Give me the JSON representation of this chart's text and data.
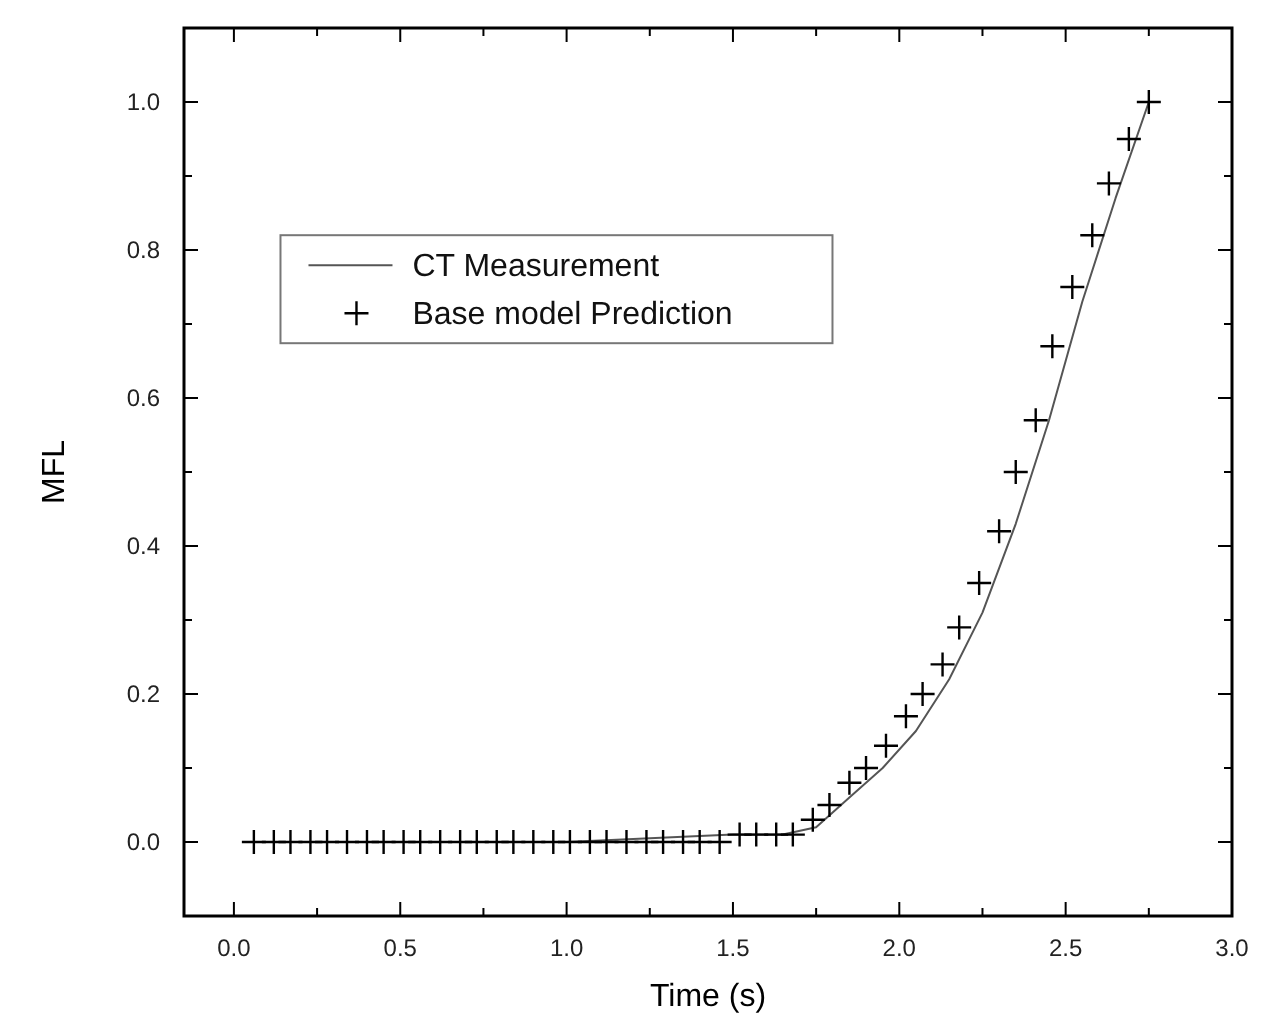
{
  "chart_data": {
    "type": "line",
    "xlabel": "Time (s)",
    "ylabel": "MFL",
    "xlim": [
      -0.15,
      3.0
    ],
    "ylim": [
      -0.1,
      1.1
    ],
    "xticks": [
      {
        "value": 0,
        "label": "0.0"
      },
      0.5,
      {
        "value": 1,
        "label": "1.0"
      },
      1.5,
      {
        "value": 2,
        "label": "2.0"
      },
      2.5,
      {
        "value": 3,
        "label": "3.0"
      }
    ],
    "yticks": [
      {
        "value": 0,
        "label": "0.0"
      },
      0.2,
      0.4,
      0.6,
      0.8,
      {
        "value": 1,
        "label": "1.0"
      }
    ],
    "legend": "top left",
    "grid": false,
    "series": [
      {
        "name": "CT Measurement",
        "color": "#555555",
        "marker": "none",
        "line_style": "solid",
        "x": [
          0.05,
          0.5,
          1.0,
          1.5,
          1.65,
          1.75,
          1.85,
          1.95,
          2.05,
          2.15,
          2.25,
          2.35,
          2.45,
          2.55,
          2.65,
          2.75
        ],
        "values": [
          0,
          0,
          0,
          0.01,
          0.01,
          0.02,
          0.06,
          0.1,
          0.15,
          0.22,
          0.31,
          0.43,
          0.57,
          0.73,
          0.87,
          1.0
        ]
      },
      {
        "name": "Base model Prediction",
        "type": "scatter",
        "color": "#000000",
        "marker": "cross",
        "x": [
          0.06,
          0.12,
          0.17,
          0.23,
          0.28,
          0.34,
          0.4,
          0.45,
          0.51,
          0.56,
          0.62,
          0.68,
          0.73,
          0.79,
          0.84,
          0.9,
          0.96,
          1.01,
          1.07,
          1.12,
          1.18,
          1.24,
          1.29,
          1.35,
          1.4,
          1.46,
          1.52,
          1.57,
          1.63,
          1.68,
          1.74,
          1.79,
          1.85,
          1.9,
          1.96,
          2.02,
          2.07,
          2.13,
          2.18,
          2.24,
          2.3,
          2.35,
          2.41,
          2.46,
          2.52,
          2.58,
          2.63,
          2.69,
          2.75
        ],
        "values": [
          0,
          0,
          0,
          0,
          0,
          0,
          0,
          0,
          0,
          0,
          0,
          0,
          0,
          0,
          0,
          0,
          0,
          0,
          0,
          0,
          0,
          0,
          0,
          0,
          0,
          0,
          0.01,
          0.01,
          0.01,
          0.01,
          0.03,
          0.05,
          0.08,
          0.1,
          0.13,
          0.17,
          0.2,
          0.24,
          0.29,
          0.35,
          0.42,
          0.5,
          0.57,
          0.67,
          0.75,
          0.82,
          0.89,
          0.95,
          1.0
        ]
      }
    ]
  }
}
